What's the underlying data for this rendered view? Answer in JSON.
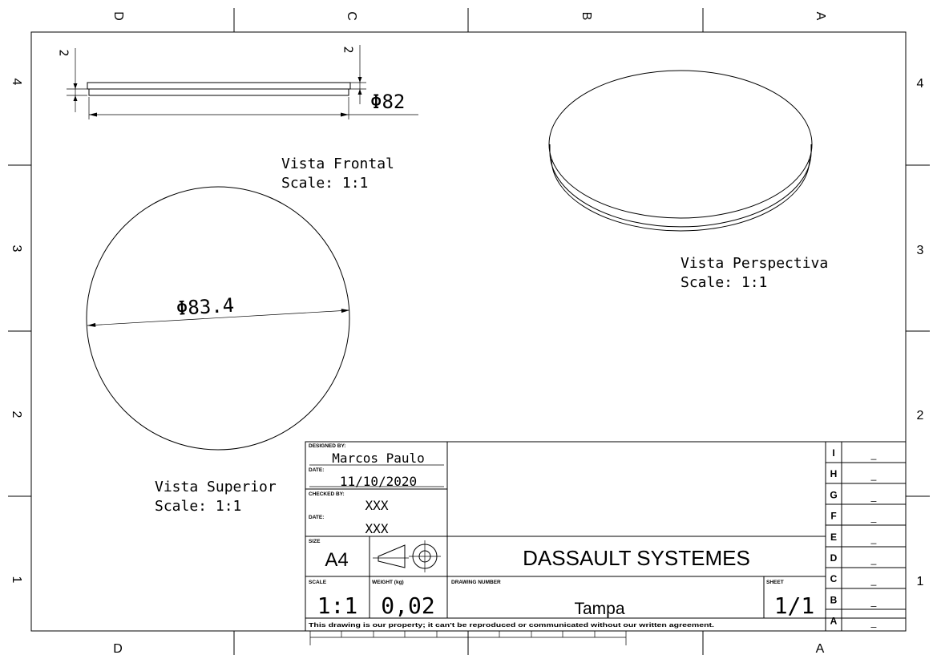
{
  "border": {
    "columns_top": [
      "D",
      "C",
      "B",
      "A"
    ],
    "columns_bottom": [
      "D",
      "A"
    ],
    "rows": [
      "4",
      "3",
      "2",
      "1"
    ]
  },
  "views": {
    "front": {
      "name": "Vista Frontal",
      "scale": "Scale:  1:1",
      "dim_left": "2",
      "dim_right": "2",
      "dim_diameter": "Φ82"
    },
    "top": {
      "name": "Vista Superior",
      "scale": "Scale:  1:1",
      "dim_diameter": "Φ83.4"
    },
    "perspective": {
      "name": "Vista Perspectiva",
      "scale": "Scale:  1:1"
    }
  },
  "title_block": {
    "designed_by_label": "DESIGNED BY:",
    "designed_by": "Marcos Paulo",
    "date_label": "DATE:",
    "date": "11/10/2020",
    "checked_by_label": "CHECKED BY:",
    "checked_by": "XXX",
    "checked_date_label": "DATE:",
    "checked_date": "XXX",
    "size_label": "SIZE",
    "size": "A4",
    "company": "DASSAULT SYSTEMES",
    "scale_label": "SCALE",
    "scale": "1:1",
    "weight_label": "WEIGHT (kg)",
    "weight": "0,02",
    "drawing_number_label": "DRAWING NUMBER",
    "drawing_number": "Tampa",
    "sheet_label": "SHEET",
    "sheet": "1/1",
    "notice": "This drawing is our property; it can't be reproduced or communicated without our written agreement."
  },
  "revisions": [
    {
      "letter": "I",
      "value": "_"
    },
    {
      "letter": "H",
      "value": "_"
    },
    {
      "letter": "G",
      "value": "_"
    },
    {
      "letter": "F",
      "value": "_"
    },
    {
      "letter": "E",
      "value": "_"
    },
    {
      "letter": "D",
      "value": "_"
    },
    {
      "letter": "C",
      "value": "_"
    },
    {
      "letter": "B",
      "value": "_"
    },
    {
      "letter": "A",
      "value": "_"
    }
  ]
}
